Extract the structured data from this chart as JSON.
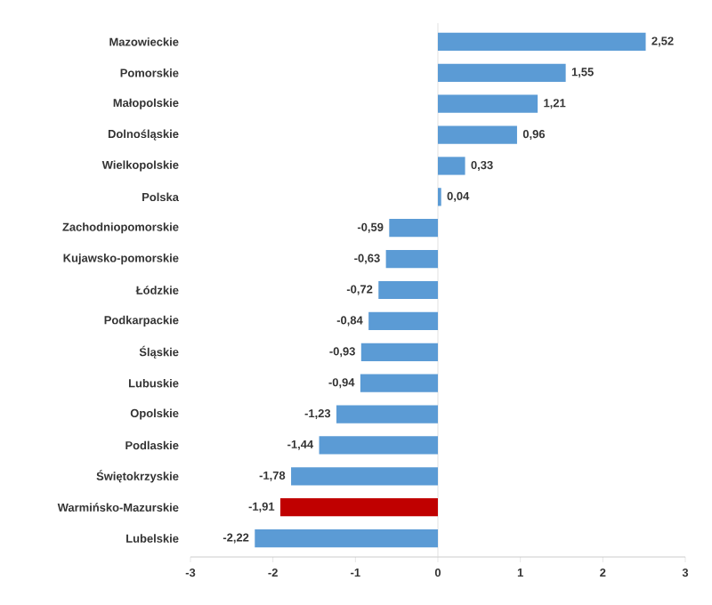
{
  "chart_data": {
    "type": "bar",
    "orientation": "horizontal",
    "categories": [
      "Mazowieckie",
      "Pomorskie",
      "Małopolskie",
      "Dolnośląskie",
      "Wielkopolskie",
      "Polska",
      "Zachodniopomorskie",
      "Kujawsko-pomorskie",
      "Łódzkie",
      "Podkarpackie",
      "Śląskie",
      "Lubuskie",
      "Opolskie",
      "Podlaskie",
      "Świętokrzyskie",
      "Warmińsko-Mazurskie",
      "Lubelskie"
    ],
    "values": [
      2.52,
      1.55,
      1.21,
      0.96,
      0.33,
      0.04,
      -0.59,
      -0.63,
      -0.72,
      -0.84,
      -0.93,
      -0.94,
      -1.23,
      -1.44,
      -1.78,
      -1.91,
      -2.22
    ],
    "value_labels": [
      "2,52",
      "1,55",
      "1,21",
      "0,96",
      "0,33",
      "0,04",
      "-0,59",
      "-0,63",
      "-0,72",
      "-0,84",
      "-0,93",
      "-0,94",
      "-1,23",
      "-1,44",
      "-1,78",
      "-1,91",
      "-2,22"
    ],
    "colors": [
      "#5b9bd5",
      "#5b9bd5",
      "#5b9bd5",
      "#5b9bd5",
      "#5b9bd5",
      "#5b9bd5",
      "#5b9bd5",
      "#5b9bd5",
      "#5b9bd5",
      "#5b9bd5",
      "#5b9bd5",
      "#5b9bd5",
      "#5b9bd5",
      "#5b9bd5",
      "#5b9bd5",
      "#c00000",
      "#5b9bd5"
    ],
    "ref_lines": [
      {
        "axis": "x",
        "value": 0,
        "color": "#d9d9d9"
      }
    ],
    "xlim": [
      -3,
      3
    ],
    "xticks": [
      -3,
      -2,
      -1,
      0,
      1,
      2,
      3
    ],
    "grid": false
  }
}
